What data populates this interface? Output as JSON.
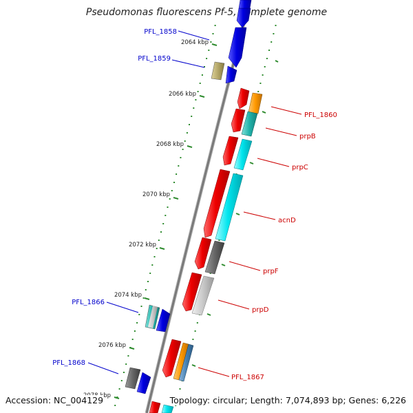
{
  "header": {
    "title": "Pseudomonas fluorescens Pf-5, complete genome"
  },
  "footer": {
    "accession": "Accession: NC_004129",
    "summary": "Topology: circular; Length: 7,074,893 bp; Genes: 6,226"
  },
  "axis": {
    "unit": "kbp",
    "ticks": [
      "2064 kbp",
      "2066 kbp",
      "2068 kbp",
      "2070 kbp",
      "2072 kbp",
      "2074 kbp",
      "2076 kbp",
      "2078 kbp"
    ]
  },
  "genes": [
    {
      "name": "PFL_1858",
      "strand": "+",
      "color": "#0000e0",
      "label_color": "#0000cc"
    },
    {
      "name": "PFL_1859",
      "strand": "+",
      "color": "#0000e0",
      "label_color": "#0000cc"
    },
    {
      "name": "PFL_1860",
      "strand": "-",
      "color": "#ee0000",
      "label_color": "#cc0000"
    },
    {
      "name": "prpB",
      "strand": "-",
      "color": "#ee0000",
      "label_color": "#cc0000"
    },
    {
      "name": "prpC",
      "strand": "-",
      "color": "#ee0000",
      "label_color": "#cc0000"
    },
    {
      "name": "acnD",
      "strand": "-",
      "color": "#ee0000",
      "label_color": "#cc0000"
    },
    {
      "name": "prpF",
      "strand": "-",
      "color": "#ee0000",
      "label_color": "#cc0000"
    },
    {
      "name": "prpD",
      "strand": "-",
      "color": "#ee0000",
      "label_color": "#cc0000"
    },
    {
      "name": "PFL_1866",
      "strand": "+",
      "color": "#0000e0",
      "label_color": "#0000cc"
    },
    {
      "name": "PFL_1867",
      "strand": "-",
      "color": "#ee0000",
      "label_color": "#cc0000"
    },
    {
      "name": "PFL_1868",
      "strand": "+",
      "color": "#0000e0",
      "label_color": "#0000cc"
    }
  ],
  "colors": {
    "backbone": "#808080",
    "tick": "#2e8b2e",
    "cog_olive": "#b5a86a",
    "cog_orange": "#ff9900",
    "cog_teal": "#20b2aa",
    "cog_cyan": "#00e5ee",
    "cog_dark_gray": "#666666",
    "cog_light_gray": "#c8c8c8",
    "cog_steel": "#4682b4"
  }
}
